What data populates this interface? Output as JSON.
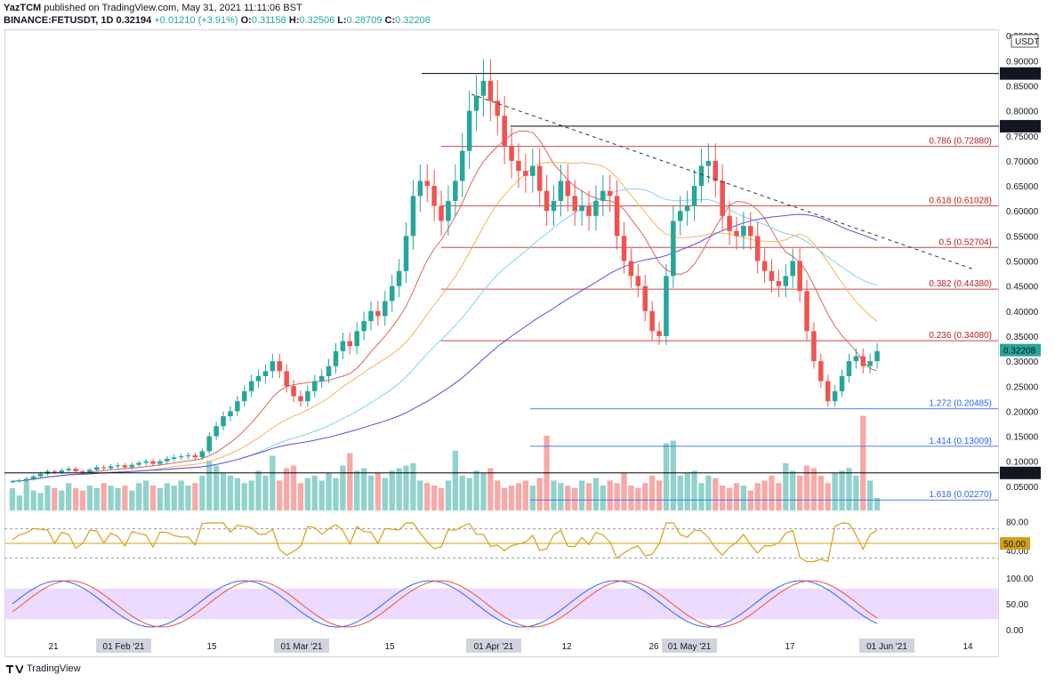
{
  "header": {
    "author": "YazTCM",
    "published_text": "published on TradingView.com, May 31, 2021 11:11:06 BST",
    "symbol": "BINANCE:FETUSDT, 1D",
    "last": "0.32194",
    "change": "+0.01210 (+3.91%)",
    "o_label": "O:",
    "o": "0.31158",
    "h_label": "H:",
    "h": "0.32506",
    "l_label": "L:",
    "l": "0.28709",
    "c_label": "C:",
    "c": "0.32208"
  },
  "price_axis": {
    "currency": "USDT",
    "ticks": [
      "0.95000",
      "0.90000",
      "0.85000",
      "0.80000",
      "0.75000",
      "0.70000",
      "0.65000",
      "0.60000",
      "0.55000",
      "0.50000",
      "0.45000",
      "0.40000",
      "0.35000",
      "0.30000",
      "0.25000",
      "0.20000",
      "0.15000",
      "0.10000",
      "0.05000"
    ],
    "labels": {
      "h1": "0.87450",
      "h2": "0.76921",
      "h3": "0.07675",
      "last": "0.32208"
    }
  },
  "rsi_axis": {
    "ticks": [
      "80.00",
      "40.00"
    ],
    "marker": "50.00"
  },
  "stoch_axis": {
    "ticks": [
      "100.00",
      "50.00",
      "0.00"
    ]
  },
  "time_axis": {
    "labels": [
      "21",
      "01 Feb '21",
      "15",
      "01 Mar '21",
      "15",
      "01 Apr '21",
      "12",
      "26",
      "01 May '21",
      "17",
      "01 Jun '21",
      "14"
    ]
  },
  "fib_levels": [
    {
      "ratio": "0.786",
      "value": "0.72880",
      "text": "0.786 (0.72880)"
    },
    {
      "ratio": "0.618",
      "value": "0.61028",
      "text": "0.618 (0.61028)"
    },
    {
      "ratio": "0.5",
      "value": "0.52704",
      "text": "0.5 (0.52704)"
    },
    {
      "ratio": "0.382",
      "value": "0.44380",
      "text": "0.382 (0.44380)"
    },
    {
      "ratio": "0.236",
      "value": "0.34080",
      "text": "0.236 (0.34080)"
    },
    {
      "ratio": "1.272",
      "value": "0.20485",
      "text": "1.272 (0.20485)"
    },
    {
      "ratio": "1.414",
      "value": "0.13009",
      "text": "1.414 (0.13009)"
    },
    {
      "ratio": "1.618",
      "value": "0.02270",
      "text": "1.618 (0.02270)"
    }
  ],
  "horizontal_levels": [
    "0.87450",
    "0.76921",
    "0.07675"
  ],
  "colors": {
    "up": "#26a69a",
    "down": "#ef5350",
    "fib_red": "#b71c1c",
    "fib_blue": "#2962ff",
    "ema_red": "#d7675d",
    "ema_orange": "#f2b25c",
    "ema_cyan": "#7ed3f0",
    "ema_purple": "#5b4fd6",
    "rsi": "#d4a017",
    "stoch_k": "#2962ff",
    "stoch_d": "#e5533c",
    "stoch_band": "#e6ccff"
  },
  "footer": {
    "brand": "TradingView"
  },
  "chart_data": {
    "type": "candlestick",
    "title": "BINANCE:FETUSDT, 1D",
    "ylabel": "USDT",
    "ylim": [
      0,
      0.95
    ],
    "x_axis_labels": [
      "21",
      "01 Feb '21",
      "15",
      "01 Mar '21",
      "15",
      "01 Apr '21",
      "12",
      "26",
      "01 May '21",
      "17",
      "01 Jun '21",
      "14"
    ],
    "closes": [
      0.06,
      0.062,
      0.065,
      0.07,
      0.075,
      0.08,
      0.078,
      0.082,
      0.085,
      0.08,
      0.078,
      0.083,
      0.088,
      0.086,
      0.09,
      0.092,
      0.088,
      0.093,
      0.097,
      0.1,
      0.095,
      0.1,
      0.105,
      0.108,
      0.11,
      0.112,
      0.108,
      0.12,
      0.15,
      0.17,
      0.19,
      0.2,
      0.22,
      0.24,
      0.26,
      0.27,
      0.28,
      0.3,
      0.28,
      0.25,
      0.23,
      0.22,
      0.24,
      0.26,
      0.27,
      0.29,
      0.32,
      0.34,
      0.33,
      0.36,
      0.38,
      0.4,
      0.39,
      0.42,
      0.45,
      0.48,
      0.55,
      0.63,
      0.66,
      0.65,
      0.61,
      0.58,
      0.62,
      0.66,
      0.72,
      0.8,
      0.83,
      0.86,
      0.82,
      0.79,
      0.73,
      0.7,
      0.68,
      0.67,
      0.69,
      0.64,
      0.6,
      0.62,
      0.66,
      0.63,
      0.6,
      0.61,
      0.59,
      0.62,
      0.64,
      0.63,
      0.55,
      0.5,
      0.47,
      0.45,
      0.4,
      0.36,
      0.35,
      0.47,
      0.58,
      0.6,
      0.61,
      0.65,
      0.69,
      0.7,
      0.66,
      0.59,
      0.56,
      0.55,
      0.57,
      0.55,
      0.5,
      0.48,
      0.46,
      0.45,
      0.47,
      0.5,
      0.44,
      0.36,
      0.3,
      0.26,
      0.22,
      0.24,
      0.27,
      0.3,
      0.31,
      0.29,
      0.3,
      0.32
    ],
    "volumes": [
      0.45,
      0.3,
      0.6,
      0.4,
      0.35,
      0.5,
      0.45,
      0.4,
      0.55,
      0.45,
      0.4,
      0.5,
      0.45,
      0.55,
      0.5,
      0.45,
      0.5,
      0.4,
      0.55,
      0.6,
      0.5,
      0.45,
      0.55,
      0.5,
      0.6,
      0.5,
      0.55,
      0.7,
      1.0,
      0.9,
      0.75,
      0.7,
      0.65,
      0.55,
      0.6,
      0.8,
      0.7,
      1.1,
      0.6,
      0.85,
      0.9,
      0.55,
      0.65,
      0.7,
      0.6,
      0.75,
      0.65,
      0.9,
      1.15,
      0.8,
      0.85,
      0.7,
      0.75,
      0.65,
      0.8,
      0.85,
      0.9,
      0.95,
      0.6,
      0.55,
      0.5,
      0.45,
      0.6,
      1.2,
      0.7,
      0.65,
      0.8,
      0.75,
      0.85,
      0.6,
      0.45,
      0.5,
      0.55,
      0.6,
      0.5,
      0.65,
      1.5,
      0.6,
      0.55,
      0.5,
      0.45,
      0.6,
      0.55,
      0.65,
      0.5,
      0.6,
      0.55,
      0.75,
      0.5,
      0.45,
      0.55,
      0.7,
      0.6,
      1.35,
      1.4,
      0.7,
      0.75,
      0.8,
      0.55,
      0.7,
      0.65,
      0.5,
      0.45,
      0.55,
      0.5,
      0.4,
      0.55,
      0.6,
      0.7,
      0.55,
      0.95,
      0.8,
      0.7,
      0.9,
      0.85,
      0.7,
      0.55,
      0.75,
      0.8,
      0.85,
      0.7,
      1.9,
      0.6,
      0.25
    ]
  }
}
